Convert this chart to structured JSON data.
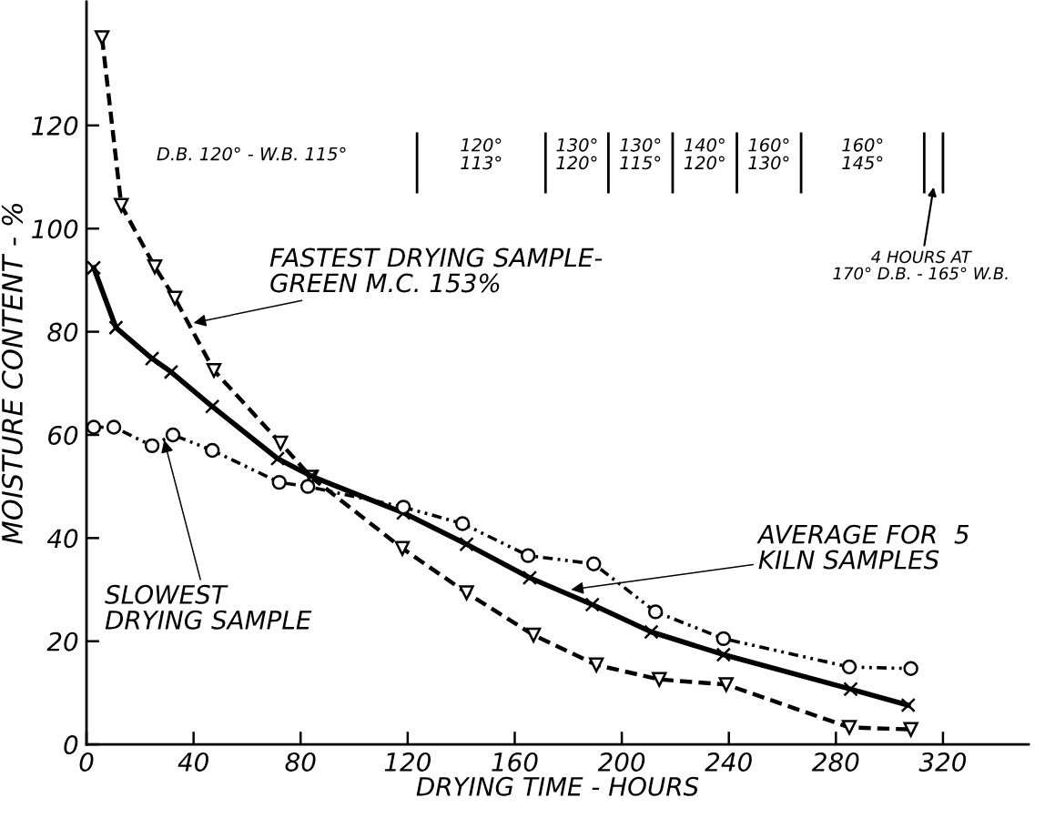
{
  "chart_data": {
    "type": "line",
    "xlabel": "DRYING TIME - HOURS",
    "ylabel": "MOISTURE CONTENT - %",
    "xlim": [
      0,
      352
    ],
    "ylim": [
      0,
      144
    ],
    "xticks": [
      0,
      40,
      80,
      120,
      160,
      200,
      240,
      280,
      320
    ],
    "yticks": [
      0,
      20,
      40,
      60,
      80,
      100,
      120
    ],
    "grid": false,
    "legend": false,
    "series": [
      {
        "color": "#000000",
        "marker": "triangle",
        "line_style": "dashed",
        "x": [
          5.8,
          13,
          25.5,
          33,
          47.6,
          72.5,
          84,
          118,
          142,
          167,
          190.5,
          214,
          239,
          285,
          308
        ],
        "values": [
          137,
          104.5,
          92.6,
          86.5,
          72.5,
          58.4,
          51.8,
          38,
          29.4,
          21.2,
          15.4,
          12.6,
          11.6,
          3.3,
          2.9
        ]
      },
      {
        "color": "#000000",
        "marker": "cross",
        "line_style": "solid",
        "x": [
          2.7,
          11,
          24.5,
          31.6,
          47,
          71.4,
          84,
          118.4,
          142,
          165.6,
          189,
          211,
          238,
          285.5,
          307
        ],
        "values": [
          92.4,
          80.8,
          74.8,
          72.2,
          65.5,
          55.4,
          52,
          44.9,
          38.8,
          32.3,
          27.1,
          21.8,
          17.4,
          10.7,
          7.6
        ]
      },
      {
        "color": "#000000",
        "marker": "circle",
        "line_style": "dotted",
        "x": [
          2.7,
          10.2,
          24.5,
          32.3,
          47,
          72,
          82.7,
          118.4,
          140.5,
          165,
          189.5,
          212.6,
          238,
          285,
          308
        ],
        "values": [
          61.5,
          61.5,
          57.9,
          60,
          57,
          50.8,
          50,
          46,
          42.8,
          36.6,
          35,
          25.7,
          20.5,
          15,
          14.7
        ]
      }
    ],
    "ref_lines": [
      {
        "axis": "x",
        "value": 123.5
      },
      {
        "axis": "x",
        "value": 171.5
      },
      {
        "axis": "x",
        "value": 195
      },
      {
        "axis": "x",
        "value": 219
      },
      {
        "axis": "x",
        "value": 243
      },
      {
        "axis": "x",
        "value": 267
      },
      {
        "axis": "x",
        "value": 313
      },
      {
        "axis": "x",
        "value": 320
      }
    ],
    "annotations": [
      "D.B. 120° - W.B. 115°",
      "120°\n113°",
      "130°\n120°",
      "130°\n115°",
      "140°\n120°",
      "160°\n130°",
      "160°\n145°",
      "4 HOURS AT\n170° D.B. - 165° W.B.",
      {
        "text": "FASTEST DRYING SAMPLE-\nGREEN M.C. 153%",
        "x": 40,
        "y": 81.7
      },
      {
        "text": "SLOWEST\nDRYING SAMPLE",
        "x": 29,
        "y": 59
      },
      {
        "text": "AVERAGE FOR  5\nKILN SAMPLES",
        "x": 181,
        "y": 30
      }
    ]
  }
}
